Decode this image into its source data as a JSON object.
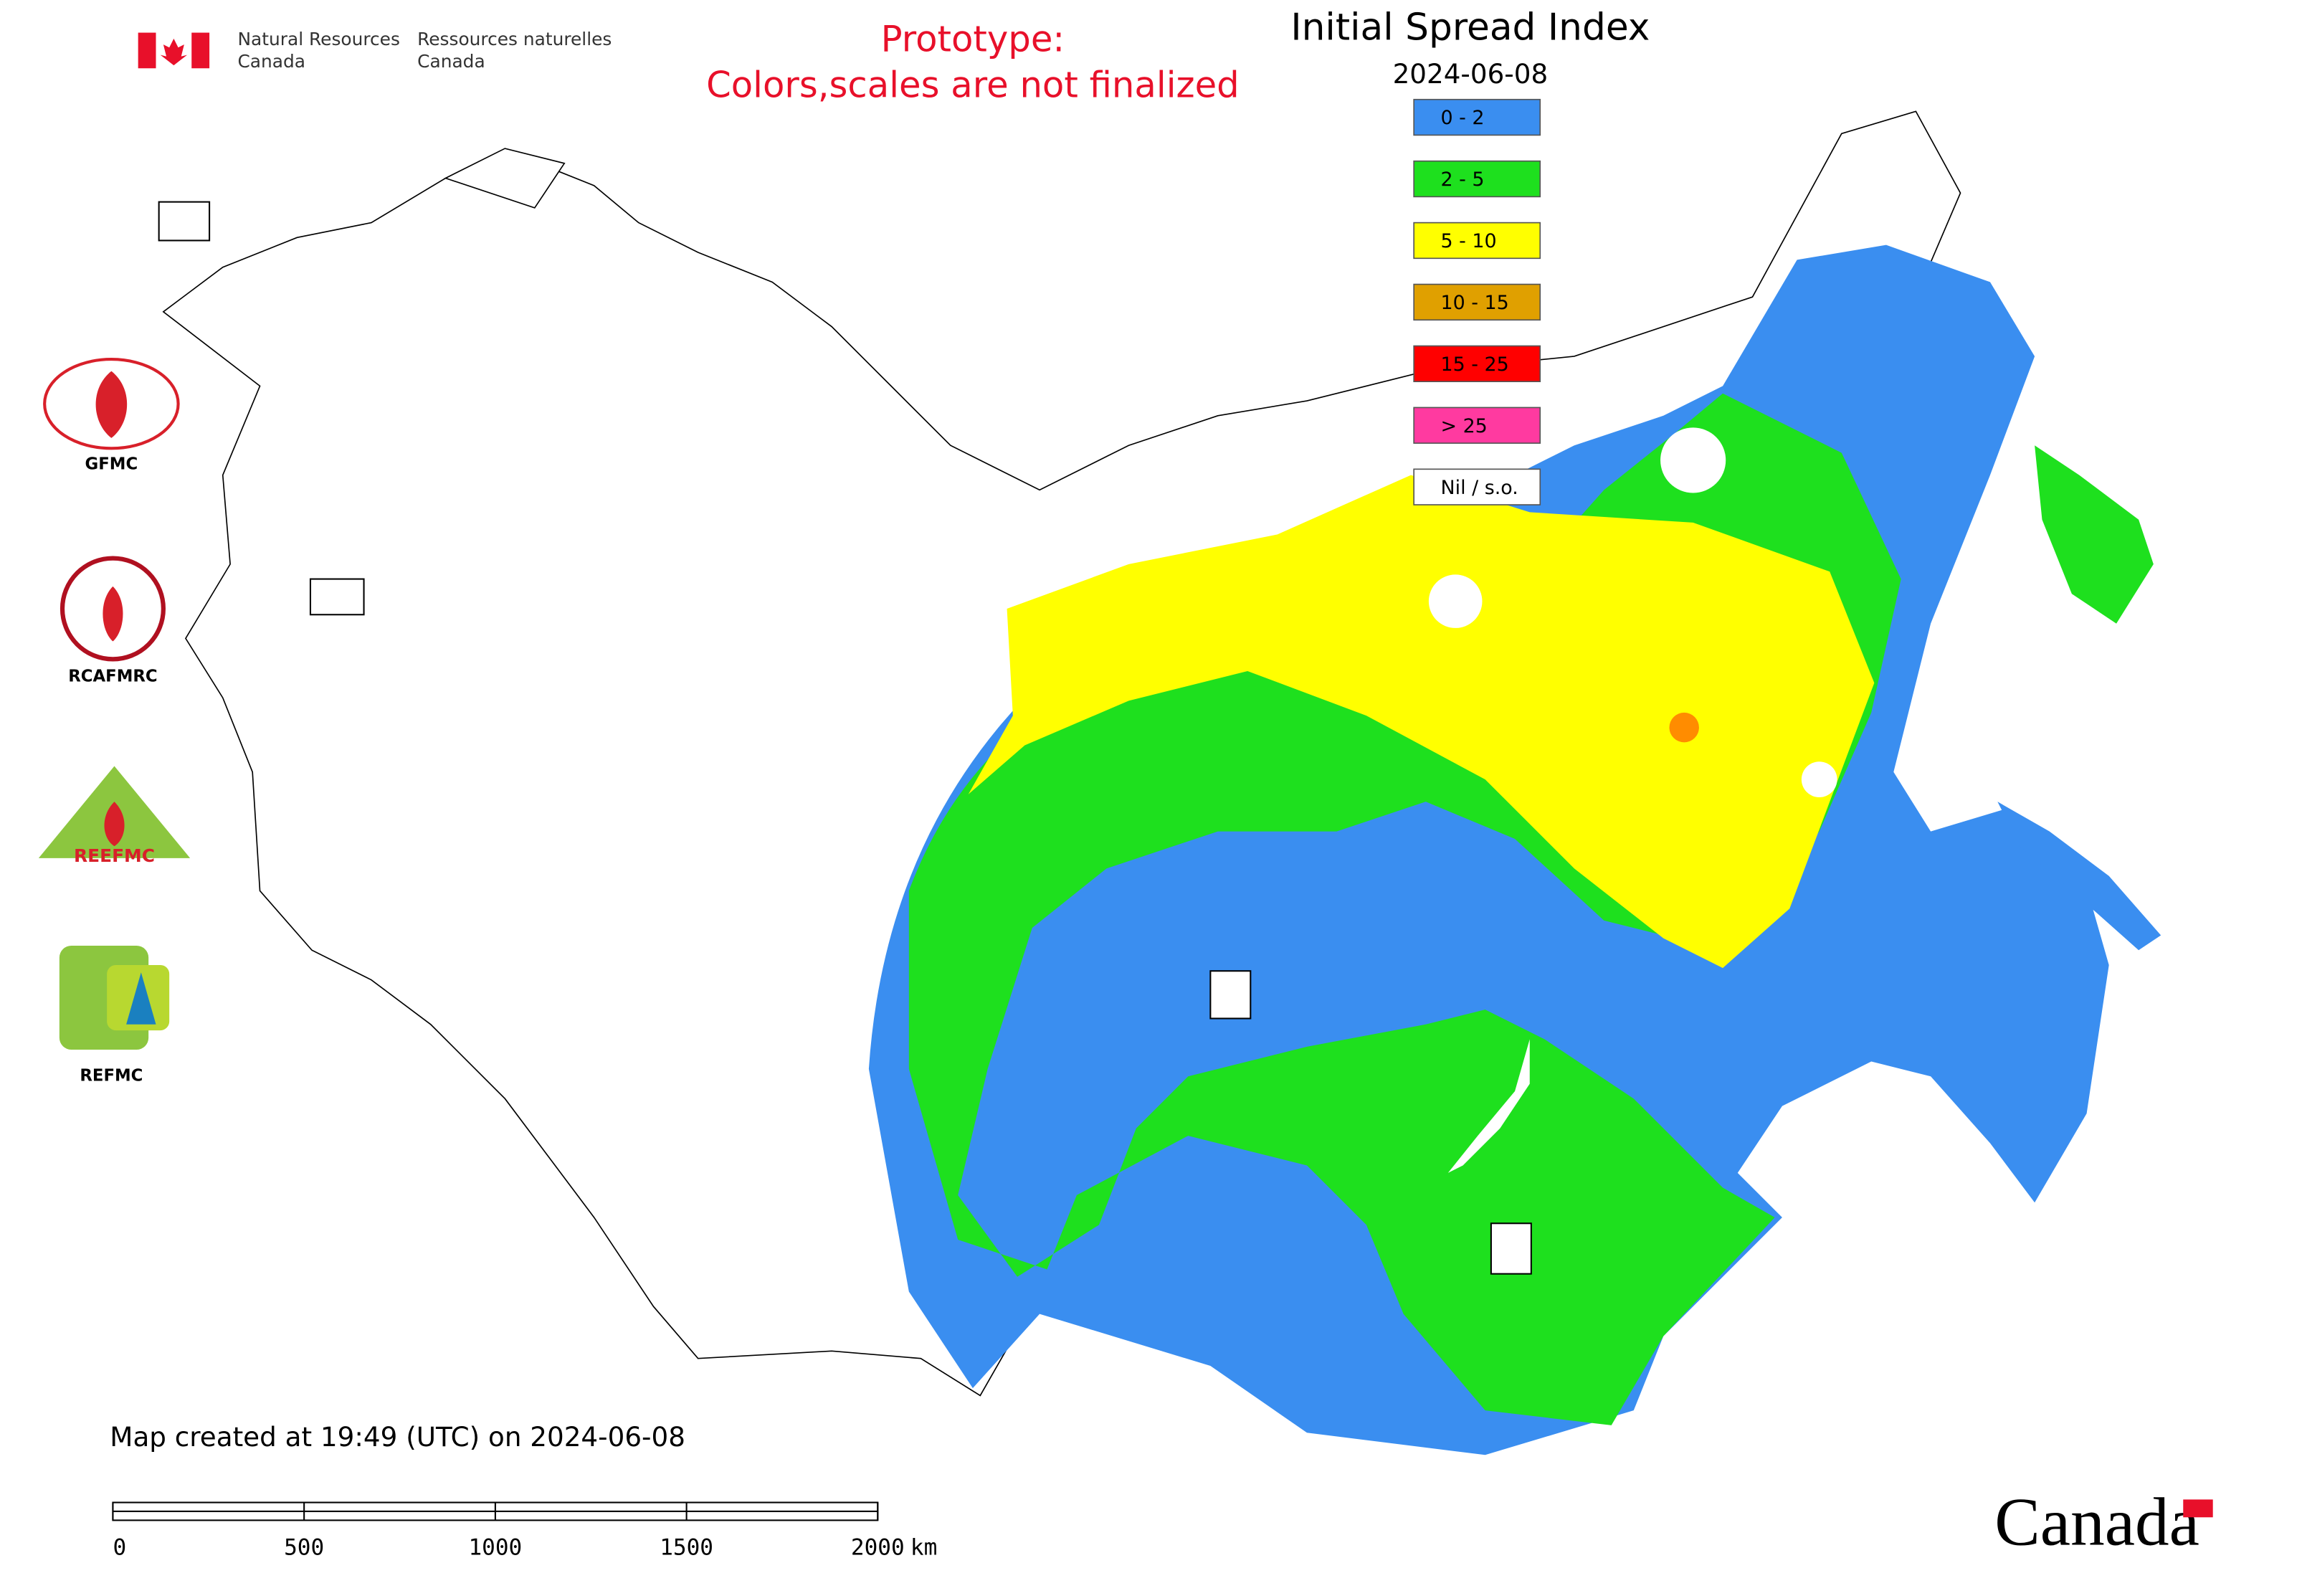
{
  "header": {
    "org_en": [
      "Natural Resources",
      "Canada"
    ],
    "org_fr": [
      "Ressources naturelles",
      "Canada"
    ],
    "notice": [
      "Prototype:",
      "Colors,scales are not finalized"
    ],
    "title": "Initial Spread Index",
    "date": "2024-06-08"
  },
  "legend": [
    {
      "label": "0 - 2",
      "color": "#3a8ef0"
    },
    {
      "label": "2 - 5",
      "color": "#1ee01e"
    },
    {
      "label": "5 - 10",
      "color": "#ffff00"
    },
    {
      "label": "10 - 15",
      "color": "#e0a000"
    },
    {
      "label": "15 - 25",
      "color": "#ff0000"
    },
    {
      "label": "> 25",
      "color": "#ff3aa0"
    },
    {
      "label": "Nil / s.o.",
      "color": "#ffffff"
    }
  ],
  "logos": [
    {
      "label": "GFMC"
    },
    {
      "label": "RCAFMRC"
    },
    {
      "label": "REEFMC"
    },
    {
      "label": "REFMC"
    }
  ],
  "footer": {
    "created": "Map created at 19:49 (UTC) on 2024-06-08",
    "scale_ticks": [
      "0",
      "500",
      "1000",
      "1500",
      "2000"
    ],
    "scale_unit": "km",
    "wordmark": "Canada"
  }
}
